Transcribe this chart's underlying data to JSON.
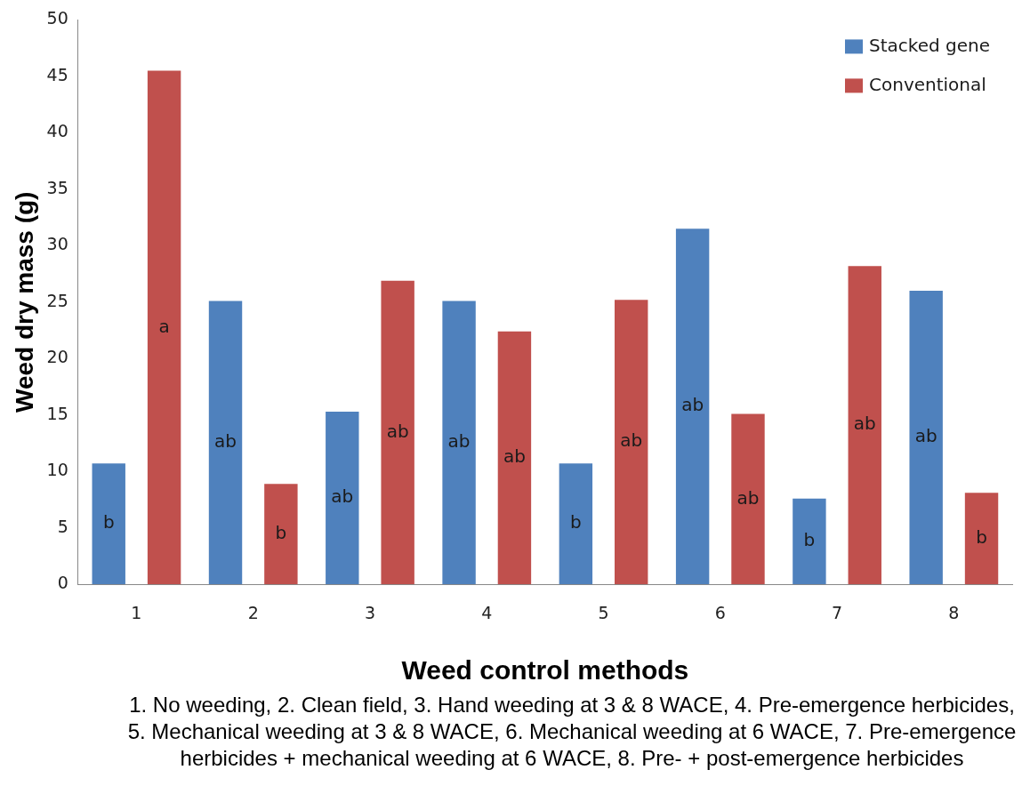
{
  "chart_data": {
    "type": "bar",
    "xlabel": "Weed control methods",
    "ylabel": "Weed dry mass (g)",
    "categories": [
      "1",
      "2",
      "3",
      "4",
      "5",
      "6",
      "7",
      "8"
    ],
    "series": [
      {
        "name": "Stacked gene",
        "color": "#4f81bd",
        "values": [
          10.7,
          25.1,
          15.3,
          25.1,
          10.7,
          31.5,
          7.6,
          26.0
        ],
        "value_labels": [
          "b",
          "ab",
          "ab",
          "ab",
          "b",
          "ab",
          "b",
          "ab"
        ]
      },
      {
        "name": "Conventional",
        "color": "#c0504d",
        "values": [
          45.5,
          8.9,
          26.9,
          22.4,
          25.2,
          15.1,
          28.2,
          8.1
        ],
        "value_labels": [
          "a",
          "b",
          "ab",
          "ab",
          "ab",
          "ab",
          "ab",
          "b"
        ]
      }
    ],
    "ylim": [
      0,
      50
    ],
    "yticks": [
      0,
      5,
      10,
      15,
      20,
      25,
      30,
      35,
      40,
      45,
      50
    ],
    "grid": false,
    "legend": "top right",
    "annotations": [
      "1. No weeding, 2. Clean field, 3. Hand weeding at 3 & 8 WACE, 4. Pre-emergence herbicides, 5.  Mechanical weeding at 3 & 8 WACE, 6. Mechanical weeding at 6 WACE, 7. Pre-emergence herbicides + mechanical weeding at 6 WACE, 8. Pre- + post-emergence herbicides"
    ]
  }
}
